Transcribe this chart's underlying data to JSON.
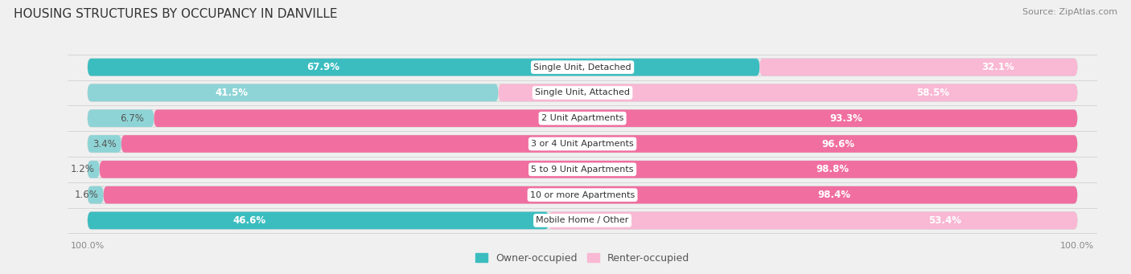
{
  "title": "HOUSING STRUCTURES BY OCCUPANCY IN DANVILLE",
  "source": "Source: ZipAtlas.com",
  "categories": [
    "Single Unit, Detached",
    "Single Unit, Attached",
    "2 Unit Apartments",
    "3 or 4 Unit Apartments",
    "5 to 9 Unit Apartments",
    "10 or more Apartments",
    "Mobile Home / Other"
  ],
  "owner_pct": [
    67.9,
    41.5,
    6.7,
    3.4,
    1.2,
    1.6,
    46.6
  ],
  "renter_pct": [
    32.1,
    58.5,
    93.3,
    96.6,
    98.8,
    98.4,
    53.4
  ],
  "owner_color": "#3bbdc0",
  "owner_color_light": "#8ed4d6",
  "renter_color": "#f06fa0",
  "renter_color_light": "#f9b8d3",
  "background_color": "#f0f0f0",
  "bar_bg_color": "#e0e0e0",
  "title_fontsize": 11,
  "source_fontsize": 8,
  "bar_label_fontsize": 8.5,
  "category_fontsize": 8,
  "legend_fontsize": 9,
  "axis_label_fontsize": 8
}
